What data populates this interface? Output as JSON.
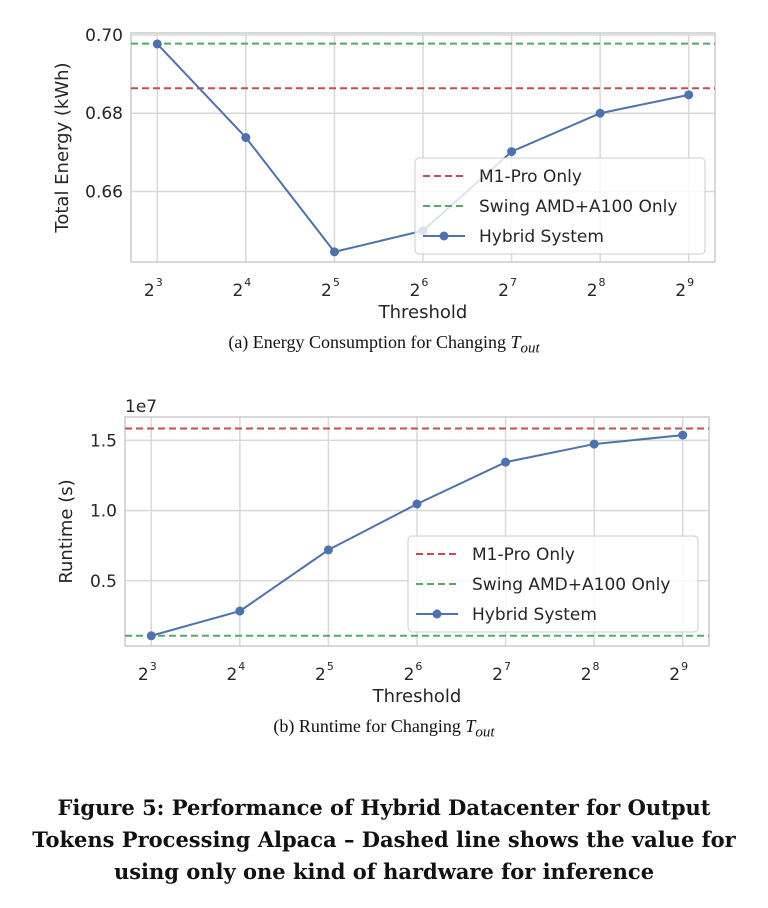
{
  "colors": {
    "hybrid": "#4c72b0",
    "m1": "#c44e52",
    "swing": "#55a868",
    "grid": "#d9d9d9",
    "frame": "#cccccc"
  },
  "chart_data": [
    {
      "type": "line",
      "categories": [
        "2^3",
        "2^4",
        "2^5",
        "2^6",
        "2^7",
        "2^8",
        "2^9"
      ],
      "tick_base": "2",
      "tick_exps": [
        "3",
        "4",
        "5",
        "6",
        "7",
        "8",
        "9"
      ],
      "xlabel": "Threshold",
      "ylabel": "Total Energy (kWh)",
      "ylim": [
        0.642,
        0.7005
      ],
      "yticks": [
        0.66,
        0.68,
        0.7
      ],
      "ytick_labels": [
        "0.66",
        "0.68",
        "0.70"
      ],
      "grid": true,
      "legend_position": "center-right",
      "series": [
        {
          "name": "M1-Pro Only",
          "style": "dashed",
          "color": "#c44e52",
          "constant": 0.6864
        },
        {
          "name": "Swing AMD+A100 Only",
          "style": "dashed",
          "color": "#55a868",
          "constant": 0.6978
        },
        {
          "name": "Hybrid System",
          "style": "solid-marker",
          "color": "#4c72b0",
          "values": [
            0.6977,
            0.6738,
            0.6446,
            0.65,
            0.6702,
            0.68,
            0.6847
          ]
        }
      ],
      "caption_prefix": "(a)  Energy Consumption for Changing ",
      "caption_var": "T",
      "caption_sub": "out"
    },
    {
      "type": "line",
      "categories": [
        "2^3",
        "2^4",
        "2^5",
        "2^6",
        "2^7",
        "2^8",
        "2^9"
      ],
      "tick_base": "2",
      "tick_exps": [
        "3",
        "4",
        "5",
        "6",
        "7",
        "8",
        "9"
      ],
      "xlabel": "Threshold",
      "ylabel": "Runtime (s)",
      "y_offset_label": "1e7",
      "ylim": [
        0.035,
        1.667
      ],
      "yticks": [
        0.5,
        1.0,
        1.5
      ],
      "ytick_labels": [
        "0.5",
        "1.0",
        "1.5"
      ],
      "grid": true,
      "legend_position": "lower-right",
      "series": [
        {
          "name": "M1-Pro Only",
          "style": "dashed",
          "color": "#c44e52",
          "constant": 1.585
        },
        {
          "name": "Swing AMD+A100 Only",
          "style": "dashed",
          "color": "#55a868",
          "constant": 0.108
        },
        {
          "name": "Hybrid System",
          "style": "solid-marker",
          "color": "#4c72b0",
          "values": [
            0.108,
            0.284,
            0.72,
            1.047,
            1.345,
            1.474,
            1.538
          ]
        }
      ],
      "caption_prefix": "(b)  Runtime for Changing ",
      "caption_var": "T",
      "caption_sub": "out"
    }
  ],
  "figure_caption": "Figure 5: Performance of Hybrid Datacenter for Output Tokens Processing Alpaca – Dashed line shows the value for using only one kind of hardware for inference"
}
